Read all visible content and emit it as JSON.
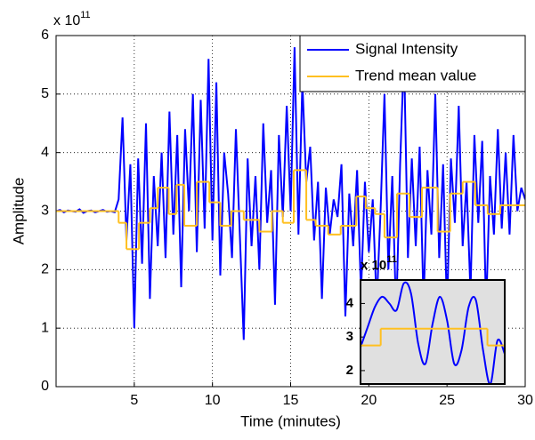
{
  "chart_data": [
    {
      "type": "line",
      "xlabel": "Time (minutes)",
      "ylabel": "Amplitude",
      "y_multiplier": {
        "base": "x 10",
        "exponent": "11"
      },
      "xlim": [
        0,
        30
      ],
      "ylim": [
        0,
        6
      ],
      "xticks": [
        5,
        10,
        15,
        20,
        25,
        30
      ],
      "yticks": [
        0,
        1,
        2,
        3,
        4,
        5,
        6
      ],
      "grid": true,
      "legend": "upper right",
      "series": [
        {
          "name": "Signal Intensity",
          "color": "#0000ff",
          "x": [
            0,
            0.25,
            0.5,
            0.75,
            1,
            1.25,
            1.5,
            1.75,
            2,
            2.25,
            2.5,
            2.75,
            3,
            3.25,
            3.5,
            3.75,
            4,
            4.25,
            4.5,
            4.75,
            5,
            5.25,
            5.5,
            5.75,
            6,
            6.25,
            6.5,
            6.75,
            7,
            7.25,
            7.5,
            7.75,
            8,
            8.25,
            8.5,
            8.75,
            9,
            9.25,
            9.5,
            9.75,
            10,
            10.25,
            10.5,
            10.75,
            11,
            11.25,
            11.5,
            11.75,
            12,
            12.25,
            12.5,
            12.75,
            13,
            13.25,
            13.5,
            13.75,
            14,
            14.25,
            14.5,
            14.75,
            15,
            15.25,
            15.5,
            15.75,
            16,
            16.25,
            16.5,
            16.75,
            17,
            17.25,
            17.5,
            17.75,
            18,
            18.25,
            18.5,
            18.75,
            19,
            19.25,
            19.5,
            19.75,
            20,
            20.25,
            20.5,
            20.75,
            21,
            21.25,
            21.5,
            21.75,
            22,
            22.25,
            22.5,
            22.75,
            23,
            23.25,
            23.5,
            23.75,
            24,
            24.25,
            24.5,
            24.75,
            25,
            25.25,
            25.5,
            25.75,
            26,
            26.25,
            26.5,
            26.75,
            27,
            27.25,
            27.5,
            27.75,
            28,
            28.25,
            28.5,
            28.75,
            29,
            29.25,
            29.5,
            29.75,
            30
          ],
          "values": [
            3.0,
            3.02,
            2.98,
            3.01,
            3.0,
            2.99,
            3.03,
            2.97,
            3.0,
            3.01,
            2.98,
            3.0,
            3.02,
            2.99,
            3.0,
            2.98,
            3.2,
            4.6,
            2.5,
            3.8,
            1.0,
            3.9,
            2.1,
            4.5,
            1.5,
            3.6,
            2.4,
            4.0,
            2.2,
            4.7,
            2.6,
            4.3,
            1.7,
            4.4,
            3.0,
            5.0,
            2.3,
            4.9,
            2.7,
            5.6,
            2.5,
            5.2,
            1.9,
            4.0,
            3.3,
            2.2,
            4.4,
            2.6,
            0.8,
            3.9,
            2.4,
            3.6,
            2.0,
            4.5,
            2.8,
            3.7,
            1.4,
            4.3,
            2.9,
            4.8,
            3.0,
            5.8,
            2.6,
            5.2,
            3.5,
            4.1,
            2.5,
            3.5,
            1.5,
            3.4,
            2.6,
            3.2,
            2.9,
            3.8,
            1.2,
            3.3,
            2.4,
            3.7,
            1.6,
            3.5,
            2.3,
            3.2,
            1.4,
            3.0,
            5.0,
            2.0,
            3.6,
            1.2,
            3.8,
            5.7,
            2.2,
            3.9,
            2.4,
            4.1,
            1.4,
            3.7,
            2.6,
            5.0,
            2.2,
            3.8,
            1.3,
            3.9,
            2.8,
            4.8,
            2.4,
            3.5,
            1.6,
            4.3,
            2.8,
            4.2,
            1.3,
            3.6,
            2.6,
            4.4,
            2.7,
            4.0,
            2.6,
            4.3,
            3.0,
            3.4,
            3.2
          ]
        },
        {
          "name": "Trend mean value",
          "color": "#ffc020",
          "step": true,
          "x": [
            0,
            4,
            4.5,
            5.3,
            6,
            6.5,
            7.2,
            7.7,
            8.2,
            9,
            9.8,
            10.5,
            11.2,
            12,
            13,
            13.8,
            14.5,
            15.2,
            16,
            16.6,
            17.4,
            18.2,
            19.2,
            19.8,
            20.4,
            21,
            21.8,
            22.6,
            23.4,
            24.4,
            25.2,
            26,
            26.8,
            27.6,
            28.4,
            29.2,
            30
          ],
          "values": [
            3.0,
            2.8,
            2.35,
            2.8,
            3.05,
            3.4,
            2.95,
            3.45,
            2.75,
            3.5,
            3.15,
            2.75,
            3.0,
            2.85,
            2.65,
            3.0,
            2.8,
            3.7,
            2.85,
            2.75,
            2.6,
            2.75,
            3.25,
            3.05,
            2.95,
            2.55,
            3.3,
            2.9,
            3.4,
            2.65,
            3.3,
            3.5,
            3.1,
            2.95,
            3.1,
            3.1,
            3.1
          ]
        }
      ]
    },
    {
      "type": "line",
      "y_multiplier": {
        "base": "x 10",
        "exponent": "11"
      },
      "xlim": [
        0,
        10
      ],
      "ylim": [
        1.6,
        4.7
      ],
      "yticks": [
        2,
        3,
        4
      ],
      "grid": false,
      "background": "#e0e0e0",
      "series": [
        {
          "color": "#0000ff",
          "smooth": true,
          "x": [
            0,
            0.5,
            1,
            1.5,
            2,
            2.5,
            3,
            3.5,
            4,
            4.5,
            5,
            5.5,
            6,
            6.5,
            7,
            7.5,
            8,
            8.5,
            9,
            9.5,
            10
          ],
          "values": [
            2.7,
            3.3,
            3.9,
            4.2,
            4.0,
            3.8,
            4.6,
            4.3,
            2.8,
            2.2,
            3.4,
            4.2,
            3.5,
            2.2,
            2.6,
            3.9,
            4.1,
            2.6,
            1.6,
            2.9,
            2.5
          ]
        },
        {
          "color": "#ffc020",
          "step": true,
          "x": [
            0,
            1.4,
            8.8,
            10
          ],
          "values": [
            2.75,
            3.25,
            2.75,
            2.75
          ]
        }
      ]
    }
  ]
}
